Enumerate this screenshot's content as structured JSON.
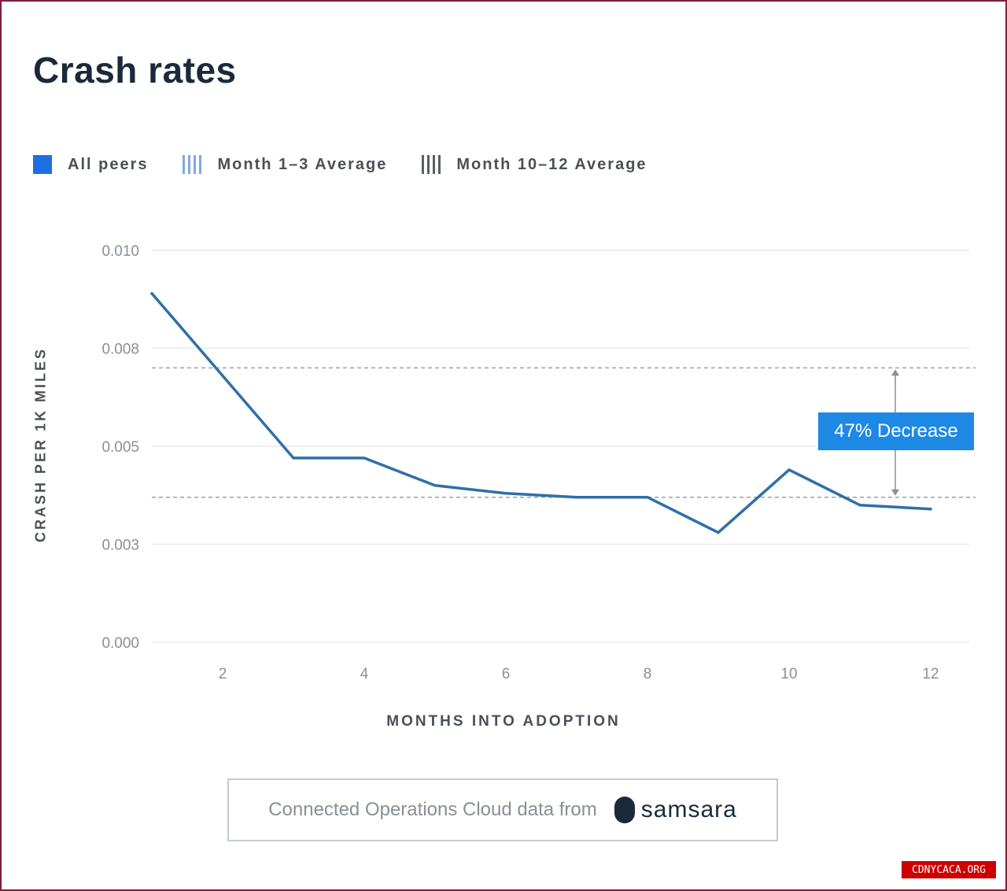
{
  "chart_data": {
    "type": "line",
    "title": "Crash rates",
    "xlabel": "MONTHS INTO ADOPTION",
    "ylabel": "CRASH PER 1K MILES",
    "xlim": [
      1,
      12
    ],
    "ylim": [
      0,
      0.01
    ],
    "x_ticks": [
      2,
      4,
      6,
      8,
      10,
      12
    ],
    "x_tick_labels": [
      "2",
      "4",
      "6",
      "8",
      "10",
      "12"
    ],
    "y_ticks": [
      0,
      0.0025,
      0.005,
      0.0075,
      0.01
    ],
    "y_tick_labels": [
      "0.000",
      "0.003",
      "0.005",
      "0.008",
      "0.010"
    ],
    "grid": true,
    "legend_position": "top-left",
    "series": [
      {
        "name": "All peers",
        "color": "#2f6fa8",
        "x": [
          1,
          2,
          3,
          4,
          5,
          6,
          7,
          8,
          9,
          10,
          11,
          12
        ],
        "y": [
          0.0089,
          0.0068,
          0.0047,
          0.0047,
          0.004,
          0.0038,
          0.0037,
          0.0037,
          0.0028,
          0.0044,
          0.0035,
          0.0034
        ]
      }
    ],
    "reference_lines": [
      {
        "name": "Month 1-3 Average",
        "y": 0.007,
        "style": "dashed"
      },
      {
        "name": "Month 10-12 Average",
        "y": 0.0037,
        "style": "dashed"
      }
    ],
    "annotation": {
      "text": "47% Decrease",
      "color": "#1e88e5"
    }
  },
  "legend": {
    "items": [
      {
        "label": "All peers",
        "swatch": "solid",
        "color": "#1e6fe0"
      },
      {
        "label": "Month 1–3 Average",
        "swatch": "blue-stripe",
        "color": "#7fa8e8"
      },
      {
        "label": "Month 10–12 Average",
        "swatch": "grey-stripe",
        "color": "#5a5f66"
      }
    ]
  },
  "source": {
    "text": "Connected Operations Cloud data from",
    "brand": "samsara"
  },
  "watermark": "CDNYCACA.ORG"
}
